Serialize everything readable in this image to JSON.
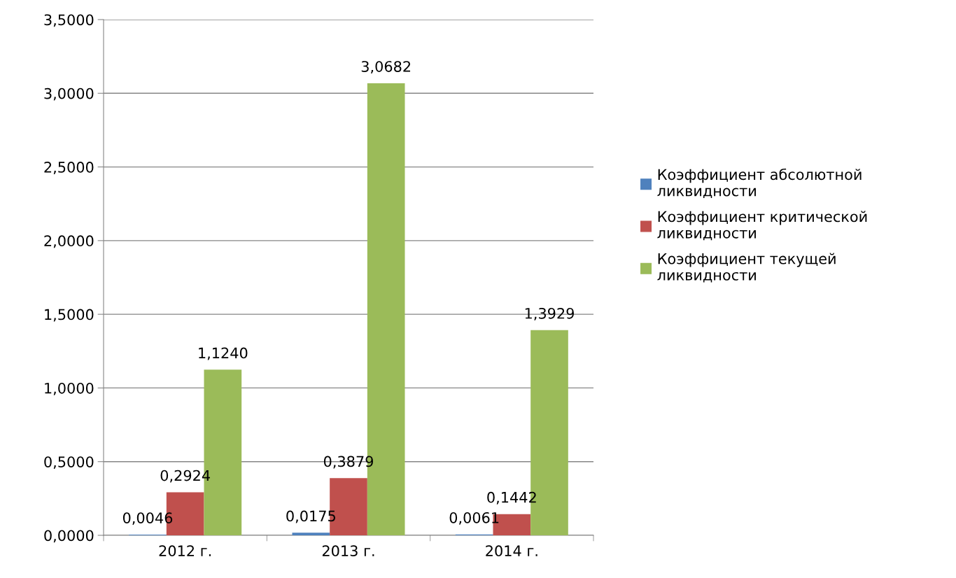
{
  "chart_data": {
    "type": "bar",
    "categories": [
      "2012 г.",
      "2013 г.",
      "2014 г."
    ],
    "series": [
      {
        "name": "Коэффициент абсолютной ликвидности",
        "color": "#4f81bd",
        "values": [
          0.0046,
          0.0175,
          0.0061
        ],
        "value_labels": [
          "0,0046",
          "0,0175",
          "0,0061"
        ]
      },
      {
        "name": "Коэффициент критической ликвидности",
        "color": "#c0504d",
        "values": [
          0.2924,
          0.3879,
          0.1442
        ],
        "value_labels": [
          "0,2924",
          "0,3879",
          "0,1442"
        ]
      },
      {
        "name": "Коэффициент текущей ликвидности",
        "color": "#9bbb59",
        "values": [
          1.124,
          3.0682,
          1.3929
        ],
        "value_labels": [
          "1,1240",
          "3,0682",
          "1,3929"
        ]
      }
    ],
    "ylim": [
      0,
      3.5
    ],
    "yticks": [
      {
        "value": 0,
        "label": "0,0000"
      },
      {
        "value": 0.5,
        "label": "0,5000"
      },
      {
        "value": 1,
        "label": "1,0000"
      },
      {
        "value": 1.5,
        "label": "1,5000"
      },
      {
        "value": 2,
        "label": "2,0000"
      },
      {
        "value": 2.5,
        "label": "2,5000"
      },
      {
        "value": 3,
        "label": "3,0000"
      },
      {
        "value": 3.5,
        "label": "3,5000"
      }
    ],
    "grid": "y",
    "legend": "right"
  }
}
